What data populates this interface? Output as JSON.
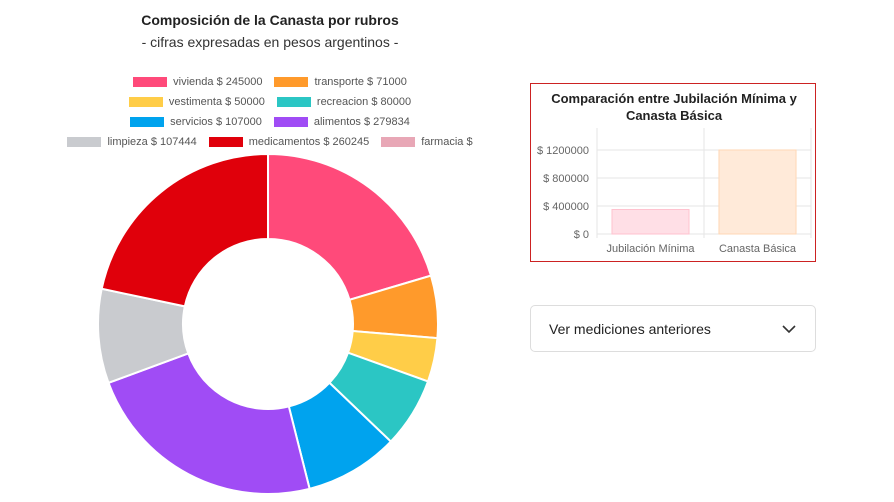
{
  "chart_data": [
    {
      "type": "pie",
      "title": "Composición de la Canasta por rubros",
      "subtitle": "- cifras expresadas en pesos argentinos -",
      "legend_position": "top",
      "donut": true,
      "categories": [
        "vivienda",
        "transporte",
        "vestimenta",
        "recreacion",
        "servicios",
        "alimentos",
        "limpieza",
        "medicamentos",
        "farmacia"
      ],
      "legend_labels": [
        "vivienda $ 245000",
        "transporte $ 71000",
        "vestimenta $ 50000",
        "recreacion $ 80000",
        "servicios $ 107000",
        "alimentos $ 279834",
        "limpieza $ 107444",
        "medicamentos $ 260245",
        "farmacia $"
      ],
      "values": [
        245000,
        71000,
        50000,
        80000,
        107000,
        279834,
        107444,
        260245,
        0
      ],
      "colors": [
        "#ff4a7a",
        "#ff9a2b",
        "#ffcd48",
        "#2bc6c4",
        "#00a3ee",
        "#a04cf5",
        "#c9cbcf",
        "#e0000b",
        "#e8a7b6"
      ]
    },
    {
      "type": "bar",
      "title": "Comparación entre Jubilación Mínima y Canasta Básica",
      "categories": [
        "Jubilación Mínima",
        "Canasta Básica"
      ],
      "values": [
        350000,
        1200523
      ],
      "ylim": [
        0,
        1400000
      ],
      "yticks": [
        0,
        400000,
        800000,
        1200000
      ],
      "ytick_labels": [
        "$ 0",
        "$ 400000",
        "$ 800000",
        "$ 1200000"
      ],
      "grid": true,
      "colors": [
        "#ffdfe6",
        "#ffead9"
      ],
      "border_colors": [
        "#ffc2cf",
        "#ffd7b5"
      ]
    }
  ],
  "accordion": {
    "label": "Ver mediciones anteriores"
  }
}
